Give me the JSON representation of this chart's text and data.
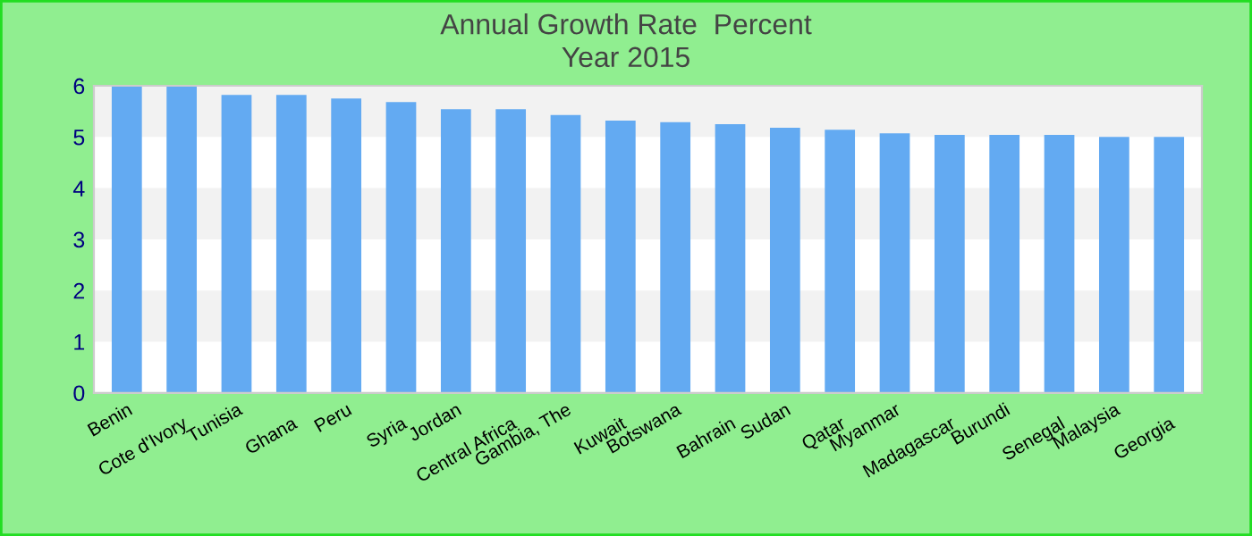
{
  "chart_data": {
    "type": "bar",
    "title": "Annual Growth Rate  Percent\nYear 2015",
    "categories": [
      "Benin",
      "Cote d'Ivory",
      "Tunisia",
      "Ghana",
      "Peru",
      "Syria",
      "Jordan",
      "Central Africa",
      "Gambia, The",
      "Kuwait",
      "Botswana",
      "Bahrain",
      "Sudan",
      "Qatar",
      "Myanmar",
      "Madagascar",
      "Burundi",
      "Senegal",
      "Malaysia",
      "Georgia"
    ],
    "values": [
      6.0,
      6.0,
      5.82,
      5.82,
      5.75,
      5.68,
      5.54,
      5.54,
      5.43,
      5.32,
      5.29,
      5.25,
      5.18,
      5.14,
      5.07,
      5.04,
      5.04,
      5.04,
      5.0,
      5.0
    ],
    "color": "#63aaf2",
    "ylim": [
      0,
      6
    ],
    "yticks": [
      0,
      1,
      2,
      3,
      4,
      5,
      6
    ],
    "legend": false
  }
}
